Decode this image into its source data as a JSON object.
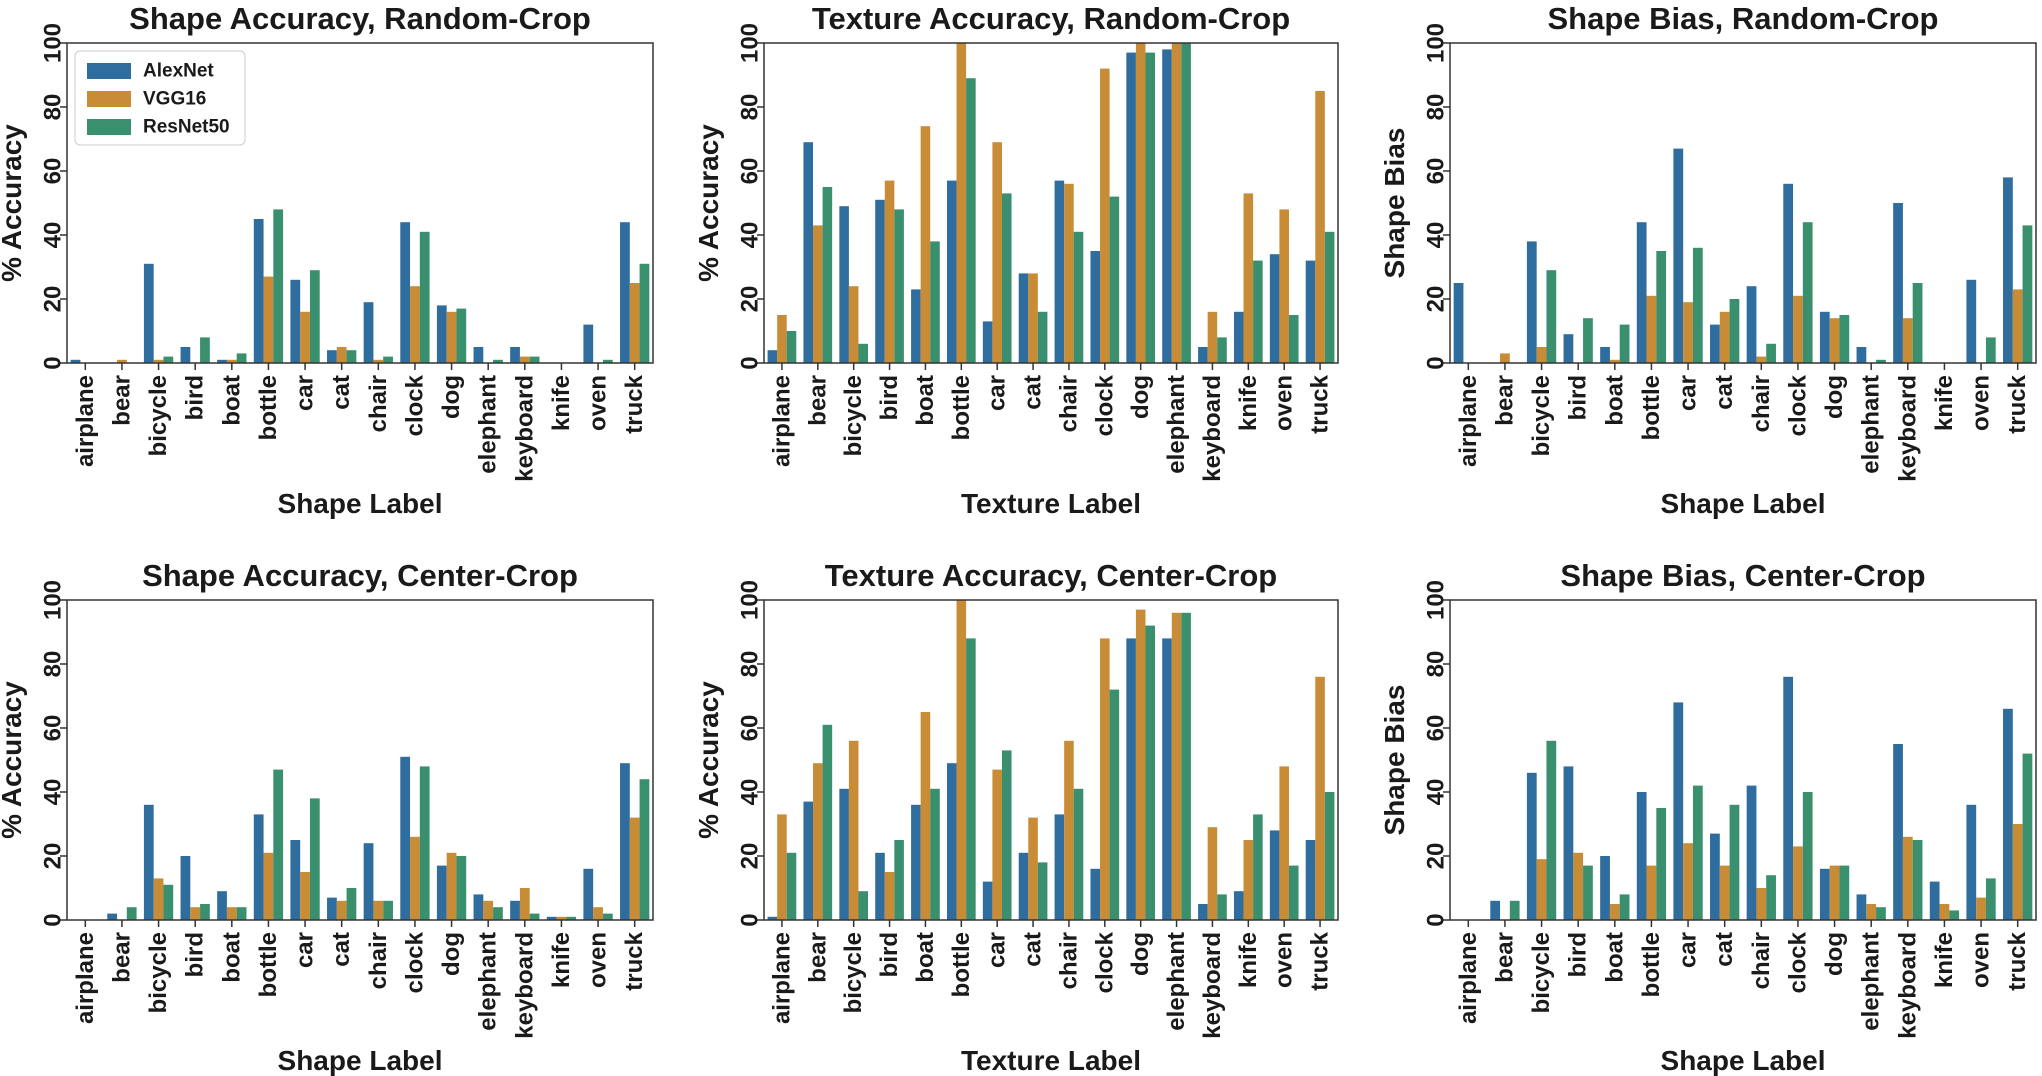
{
  "colors": {
    "AlexNet": "#2f6d9e",
    "VGG16": "#c88c36",
    "ResNet50": "#3a8f6e"
  },
  "chart_data": [
    {
      "type": "bar",
      "title": "Shape Accuracy, Random-Crop",
      "xlabel": "Shape Label",
      "ylabel": "% Accuracy",
      "ylim": [
        0,
        100
      ],
      "yticks": [
        "0",
        "20",
        "40",
        "60",
        "80",
        "100"
      ],
      "legend": "top-left",
      "categories": [
        "airplane",
        "bear",
        "bicycle",
        "bird",
        "boat",
        "bottle",
        "car",
        "cat",
        "chair",
        "clock",
        "dog",
        "elephant",
        "keyboard",
        "knife",
        "oven",
        "truck"
      ],
      "series": [
        {
          "name": "AlexNet",
          "values": [
            1,
            0,
            31,
            5,
            1,
            45,
            26,
            4,
            19,
            44,
            18,
            5,
            5,
            0,
            12,
            44
          ]
        },
        {
          "name": "VGG16",
          "values": [
            0,
            1,
            1,
            0,
            1,
            27,
            16,
            5,
            1,
            24,
            16,
            0,
            2,
            0,
            0,
            25
          ]
        },
        {
          "name": "ResNet50",
          "values": [
            0,
            0,
            2,
            8,
            3,
            48,
            29,
            4,
            2,
            41,
            17,
            1,
            2,
            0,
            1,
            31
          ]
        }
      ]
    },
    {
      "type": "bar",
      "title": "Texture Accuracy, Random-Crop",
      "xlabel": "Texture Label",
      "ylabel": "% Accuracy",
      "ylim": [
        0,
        100
      ],
      "yticks": [
        "0",
        "20",
        "40",
        "60",
        "80",
        "100"
      ],
      "categories": [
        "airplane",
        "bear",
        "bicycle",
        "bird",
        "boat",
        "bottle",
        "car",
        "cat",
        "chair",
        "clock",
        "dog",
        "elephant",
        "keyboard",
        "knife",
        "oven",
        "truck"
      ],
      "series": [
        {
          "name": "AlexNet",
          "values": [
            4,
            69,
            49,
            51,
            23,
            57,
            13,
            28,
            57,
            35,
            97,
            98,
            5,
            16,
            34,
            32
          ]
        },
        {
          "name": "VGG16",
          "values": [
            15,
            43,
            24,
            57,
            74,
            100,
            69,
            28,
            56,
            92,
            100,
            100,
            16,
            53,
            48,
            85
          ]
        },
        {
          "name": "ResNet50",
          "values": [
            10,
            55,
            6,
            48,
            38,
            89,
            53,
            16,
            41,
            52,
            97,
            100,
            8,
            32,
            15,
            41
          ]
        }
      ]
    },
    {
      "type": "bar",
      "title": "Shape Bias, Random-Crop",
      "xlabel": "Shape Label",
      "ylabel": "Shape Bias",
      "ylim": [
        0,
        100
      ],
      "yticks": [
        "0",
        "20",
        "40",
        "60",
        "80",
        "100"
      ],
      "categories": [
        "airplane",
        "bear",
        "bicycle",
        "bird",
        "boat",
        "bottle",
        "car",
        "cat",
        "chair",
        "clock",
        "dog",
        "elephant",
        "keyboard",
        "knife",
        "oven",
        "truck"
      ],
      "series": [
        {
          "name": "AlexNet",
          "values": [
            25,
            0,
            38,
            9,
            5,
            44,
            67,
            12,
            24,
            56,
            16,
            5,
            50,
            0,
            26,
            58
          ]
        },
        {
          "name": "VGG16",
          "values": [
            0,
            3,
            5,
            0,
            1,
            21,
            19,
            16,
            2,
            21,
            14,
            0,
            14,
            0,
            0,
            23
          ]
        },
        {
          "name": "ResNet50",
          "values": [
            0,
            0,
            29,
            14,
            12,
            35,
            36,
            20,
            6,
            44,
            15,
            1,
            25,
            0,
            8,
            43
          ]
        }
      ]
    },
    {
      "type": "bar",
      "title": "Shape Accuracy, Center-Crop",
      "xlabel": "Shape Label",
      "ylabel": "% Accuracy",
      "ylim": [
        0,
        100
      ],
      "yticks": [
        "0",
        "20",
        "40",
        "60",
        "80",
        "100"
      ],
      "categories": [
        "airplane",
        "bear",
        "bicycle",
        "bird",
        "boat",
        "bottle",
        "car",
        "cat",
        "chair",
        "clock",
        "dog",
        "elephant",
        "keyboard",
        "knife",
        "oven",
        "truck"
      ],
      "series": [
        {
          "name": "AlexNet",
          "values": [
            0,
            2,
            36,
            20,
            9,
            33,
            25,
            7,
            24,
            51,
            17,
            8,
            6,
            1,
            16,
            49
          ]
        },
        {
          "name": "VGG16",
          "values": [
            0,
            0,
            13,
            4,
            4,
            21,
            15,
            6,
            6,
            26,
            21,
            6,
            10,
            1,
            4,
            32
          ]
        },
        {
          "name": "ResNet50",
          "values": [
            0,
            4,
            11,
            5,
            4,
            47,
            38,
            10,
            6,
            48,
            20,
            4,
            2,
            1,
            2,
            44
          ]
        }
      ]
    },
    {
      "type": "bar",
      "title": "Texture Accuracy, Center-Crop",
      "xlabel": "Texture Label",
      "ylabel": "% Accuracy",
      "ylim": [
        0,
        100
      ],
      "yticks": [
        "0",
        "20",
        "40",
        "60",
        "80",
        "100"
      ],
      "categories": [
        "airplane",
        "bear",
        "bicycle",
        "bird",
        "boat",
        "bottle",
        "car",
        "cat",
        "chair",
        "clock",
        "dog",
        "elephant",
        "keyboard",
        "knife",
        "oven",
        "truck"
      ],
      "series": [
        {
          "name": "AlexNet",
          "values": [
            1,
            37,
            41,
            21,
            36,
            49,
            12,
            21,
            33,
            16,
            88,
            88,
            5,
            9,
            28,
            25
          ]
        },
        {
          "name": "VGG16",
          "values": [
            33,
            49,
            56,
            15,
            65,
            100,
            47,
            32,
            56,
            88,
            97,
            96,
            29,
            25,
            48,
            76
          ]
        },
        {
          "name": "ResNet50",
          "values": [
            21,
            61,
            9,
            25,
            41,
            88,
            53,
            18,
            41,
            72,
            92,
            96,
            8,
            33,
            17,
            40
          ]
        }
      ]
    },
    {
      "type": "bar",
      "title": "Shape Bias, Center-Crop",
      "xlabel": "Shape Label",
      "ylabel": "Shape Bias",
      "ylim": [
        0,
        100
      ],
      "yticks": [
        "0",
        "20",
        "40",
        "60",
        "80",
        "100"
      ],
      "categories": [
        "airplane",
        "bear",
        "bicycle",
        "bird",
        "boat",
        "bottle",
        "car",
        "cat",
        "chair",
        "clock",
        "dog",
        "elephant",
        "keyboard",
        "knife",
        "oven",
        "truck"
      ],
      "series": [
        {
          "name": "AlexNet",
          "values": [
            0,
            6,
            46,
            48,
            20,
            40,
            68,
            27,
            42,
            76,
            16,
            8,
            55,
            12,
            36,
            66
          ]
        },
        {
          "name": "VGG16",
          "values": [
            0,
            0,
            19,
            21,
            5,
            17,
            24,
            17,
            10,
            23,
            17,
            5,
            26,
            5,
            7,
            30
          ]
        },
        {
          "name": "ResNet50",
          "values": [
            0,
            6,
            56,
            17,
            8,
            35,
            42,
            36,
            14,
            40,
            17,
            4,
            25,
            3,
            13,
            52
          ]
        }
      ]
    }
  ]
}
